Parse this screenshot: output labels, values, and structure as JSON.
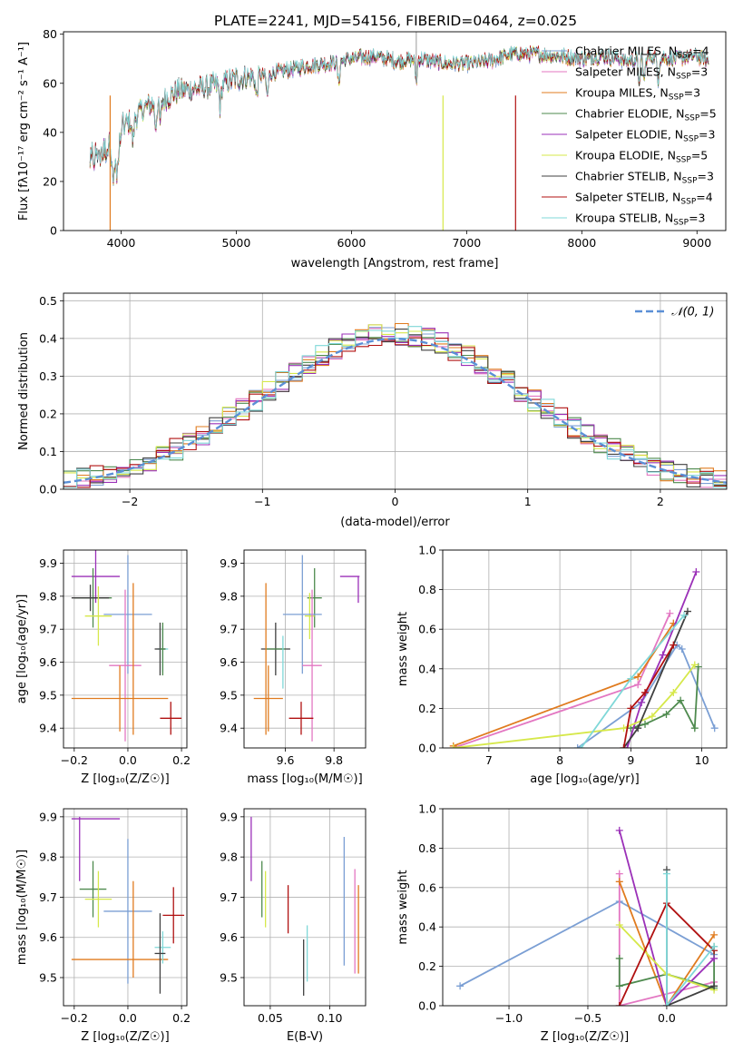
{
  "title": "PLATE=2241, MJD=54156, FIBERID=0464, z=0.025",
  "colors": {
    "c_miles": "#7b9fd4",
    "s_miles": "#e377c2",
    "k_miles": "#e07b1f",
    "c_elodie": "#4e8a4e",
    "s_elodie": "#9b30b8",
    "k_elodie": "#d6e84a",
    "c_stelib": "#404040",
    "s_stelib": "#b01010",
    "k_stelib": "#7fd8d8",
    "normal": "#5b8fd6"
  },
  "chart_data": [
    {
      "id": "spectrum",
      "type": "line",
      "xlabel": "wavelength [Angstrom, rest frame]",
      "ylabel": "Flux [fλ10⁻¹⁷ erg cm⁻² s⁻¹ A⁻¹]",
      "xlim": [
        3500,
        9250
      ],
      "ylim": [
        0,
        81
      ],
      "xticks": [
        4000,
        5000,
        6000,
        7000,
        8000,
        9000
      ],
      "yticks": [
        0,
        20,
        40,
        60,
        80
      ],
      "legend": "upper-right",
      "continuum": {
        "x": [
          3730,
          3800,
          3900,
          3950,
          4000,
          4100,
          4200,
          4300,
          4400,
          4500,
          4700,
          4900,
          5000,
          5200,
          5400,
          5600,
          5800,
          6000,
          6200,
          6400,
          6600,
          6800,
          7000,
          7200,
          7400,
          7600,
          7800,
          8000,
          8200,
          8400,
          8600,
          8800,
          9000,
          9100
        ],
        "y": [
          32,
          34,
          38,
          30,
          42,
          45,
          50,
          52,
          54,
          57,
          58,
          60,
          62,
          63,
          65,
          67,
          68,
          70,
          71,
          69,
          70,
          68,
          68,
          69,
          72,
          72,
          71,
          70,
          71,
          69,
          71,
          70,
          71,
          69
        ]
      },
      "series": [
        {
          "name": "Chabrier MILES, N_SSP=4",
          "color": "c_miles"
        },
        {
          "name": "Salpeter MILES, N_SSP=3",
          "color": "s_miles"
        },
        {
          "name": "Kroupa MILES, N_SSP=3",
          "color": "k_miles"
        },
        {
          "name": "Chabrier ELODIE, N_SSP=5",
          "color": "c_elodie"
        },
        {
          "name": "Salpeter ELODIE, N_SSP=3",
          "color": "s_elodie"
        },
        {
          "name": "Kroupa ELODIE, N_SSP=5",
          "color": "k_elodie"
        },
        {
          "name": "Chabrier STELIB, N_SSP=3",
          "color": "c_stelib"
        },
        {
          "name": "Salpeter STELIB, N_SSP=4",
          "color": "s_stelib"
        },
        {
          "name": "Kroupa STELIB, N_SSP=3",
          "color": "k_stelib"
        }
      ],
      "legend_labels": [
        {
          "pre": "Chabrier MILES, N",
          "sub": "SSP",
          "post": "=4"
        },
        {
          "pre": "Salpeter MILES, N",
          "sub": "SSP",
          "post": "=3"
        },
        {
          "pre": "Kroupa MILES, N",
          "sub": "SSP",
          "post": "=3"
        },
        {
          "pre": "Chabrier ELODIE, N",
          "sub": "SSP",
          "post": "=5"
        },
        {
          "pre": "Salpeter ELODIE, N",
          "sub": "SSP",
          "post": "=3"
        },
        {
          "pre": "Kroupa ELODIE, N",
          "sub": "SSP",
          "post": "=5"
        },
        {
          "pre": "Chabrier STELIB, N",
          "sub": "SSP",
          "post": "=3"
        },
        {
          "pre": "Salpeter STELIB, N",
          "sub": "SSP",
          "post": "=4"
        },
        {
          "pre": "Kroupa STELIB, N",
          "sub": "SSP",
          "post": "=3"
        }
      ]
    },
    {
      "id": "residuals",
      "type": "histogram",
      "xlabel": "(data-model)/error",
      "ylabel": "Normed distribution",
      "xlim": [
        -2.5,
        2.5
      ],
      "ylim": [
        0,
        0.52
      ],
      "xticks": [
        -2,
        -1,
        0,
        1,
        2
      ],
      "yticks": [
        0.0,
        0.1,
        0.2,
        0.3,
        0.4,
        0.5
      ],
      "grid": true,
      "legend": "upper-right",
      "normal_label": "𝒩(0, 1)",
      "bin_width": 0.1,
      "bin_start": -2.5
    },
    {
      "id": "age_vs_Z",
      "type": "errorbar",
      "xlabel": "Z [log₁₀(Z/Z☉)]",
      "ylabel": "age  [log₁₀(age/yr)]",
      "xlim": [
        -0.24,
        0.22
      ],
      "ylim": [
        9.34,
        9.94
      ],
      "xticks": [
        -0.2,
        0.0,
        0.2
      ],
      "yticks": [
        9.4,
        9.5,
        9.6,
        9.7,
        9.8,
        9.9
      ],
      "grid": true,
      "points": [
        {
          "color": "s_elodie",
          "x": -0.12,
          "xerr": 0.09,
          "y": 9.86,
          "yerr": 0.08
        },
        {
          "color": "c_elodie",
          "x": -0.13,
          "xerr": 0.07,
          "y": 9.795,
          "yerr": 0.09
        },
        {
          "color": "c_stelib",
          "x": -0.14,
          "xerr": 0.07,
          "y": 9.795,
          "yerr": 0.04
        },
        {
          "color": "k_elodie",
          "x": -0.11,
          "xerr": 0.05,
          "y": 9.74,
          "yerr": 0.09
        },
        {
          "color": "c_miles",
          "x": -0.0,
          "xerr": 0.09,
          "y": 9.745,
          "yerr": 0.18
        },
        {
          "color": "s_miles",
          "x": -0.01,
          "xerr": 0.06,
          "y": 9.59,
          "yerr": 0.23
        },
        {
          "color": "k_miles",
          "x": -0.03,
          "xerr": 0.18,
          "y": 9.49,
          "yerr": 0.1
        },
        {
          "color": "k_miles",
          "x": 0.02,
          "xerr": 0.0,
          "y": 9.61,
          "yerr": 0.23
        },
        {
          "color": "k_stelib",
          "x": 0.13,
          "xerr": 0.02,
          "y": 9.64,
          "yerr": 0.07
        },
        {
          "color": "c_stelib",
          "x": 0.12,
          "xerr": 0.02,
          "y": 9.64,
          "yerr": 0.08
        },
        {
          "color": "c_elodie",
          "x": 0.13,
          "xerr": 0.01,
          "y": 9.64,
          "yerr": 0.08
        },
        {
          "color": "s_stelib",
          "x": 0.16,
          "xerr": 0.04,
          "y": 9.43,
          "yerr": 0.05
        }
      ]
    },
    {
      "id": "age_vs_mass",
      "type": "errorbar",
      "xlabel": "mass [log₁₀(M/M☉)]",
      "ylabel": "",
      "xlim": [
        9.43,
        9.93
      ],
      "ylim": [
        9.34,
        9.94
      ],
      "xticks": [
        9.6,
        9.8
      ],
      "yticks": [
        9.4,
        9.5,
        9.6,
        9.7,
        9.8,
        9.9
      ],
      "grid": true,
      "points": [
        {
          "color": "s_elodie",
          "x": 9.865,
          "xerr": 0.04,
          "y": 9.86,
          "yerr": 0.0
        },
        {
          "color": "s_elodie",
          "x": 9.9,
          "xerr": 0.0,
          "y": 9.82,
          "yerr": 0.04
        },
        {
          "color": "c_elodie",
          "x": 9.72,
          "xerr": 0.03,
          "y": 9.795,
          "yerr": 0.09
        },
        {
          "color": "k_elodie",
          "x": 9.7,
          "xerr": 0.02,
          "y": 9.74,
          "yerr": 0.07
        },
        {
          "color": "c_miles",
          "x": 9.67,
          "xerr": 0.08,
          "y": 9.745,
          "yerr": 0.18
        },
        {
          "color": "c_stelib",
          "x": 9.56,
          "xerr": 0.06,
          "y": 9.64,
          "yerr": 0.08
        },
        {
          "color": "c_elodie",
          "x": 9.56,
          "xerr": 0.04,
          "y": 9.64,
          "yerr": 0.0
        },
        {
          "color": "s_miles",
          "x": 9.71,
          "xerr": 0.04,
          "y": 9.59,
          "yerr": 0.23
        },
        {
          "color": "k_miles",
          "x": 9.53,
          "xerr": 0.06,
          "y": 9.49,
          "yerr": 0.1
        },
        {
          "color": "k_miles",
          "x": 9.52,
          "xerr": 0.0,
          "y": 9.61,
          "yerr": 0.23
        },
        {
          "color": "k_stelib",
          "x": 9.59,
          "xerr": 0.0,
          "y": 9.6,
          "yerr": 0.08
        },
        {
          "color": "s_stelib",
          "x": 9.665,
          "xerr": 0.05,
          "y": 9.43,
          "yerr": 0.05
        }
      ]
    },
    {
      "id": "weight_vs_age",
      "type": "line",
      "xlabel": "age  [log₁₀(age/yr)]",
      "ylabel": "mass weight",
      "xlim": [
        6.35,
        10.35
      ],
      "ylim": [
        0,
        1.0
      ],
      "xticks": [
        7,
        8,
        9,
        10
      ],
      "yticks": [
        0.0,
        0.2,
        0.4,
        0.6,
        0.8,
        1.0
      ],
      "grid": true,
      "series": [
        {
          "color": "c_miles",
          "x": [
            8.25,
            9.15,
            9.65,
            9.72,
            10.18
          ],
          "y": [
            0.0,
            0.23,
            0.52,
            0.5,
            0.1
          ]
        },
        {
          "color": "s_miles",
          "x": [
            6.5,
            9.1,
            9.55
          ],
          "y": [
            0.0,
            0.32,
            0.68
          ]
        },
        {
          "color": "k_miles",
          "x": [
            6.5,
            9.1,
            9.6
          ],
          "y": [
            0.01,
            0.36,
            0.63
          ]
        },
        {
          "color": "c_elodie",
          "x": [
            9.0,
            9.2,
            9.5,
            9.7,
            9.9,
            9.95
          ],
          "y": [
            0.1,
            0.12,
            0.17,
            0.24,
            0.1,
            0.41
          ]
        },
        {
          "color": "s_elodie",
          "x": [
            8.95,
            9.15,
            9.45,
            9.92
          ],
          "y": [
            0.0,
            0.23,
            0.47,
            0.89
          ]
        },
        {
          "color": "k_elodie",
          "x": [
            6.5,
            8.9,
            9.3,
            9.6,
            9.9
          ],
          "y": [
            0.0,
            0.1,
            0.16,
            0.28,
            0.42
          ]
        },
        {
          "color": "c_stelib",
          "x": [
            8.9,
            9.1,
            9.8
          ],
          "y": [
            0.0,
            0.1,
            0.69
          ]
        },
        {
          "color": "s_stelib",
          "x": [
            8.9,
            9.0,
            9.2,
            9.6
          ],
          "y": [
            0.0,
            0.2,
            0.28,
            0.52
          ]
        },
        {
          "color": "k_stelib",
          "x": [
            8.3,
            9.0,
            9.75
          ],
          "y": [
            0.0,
            0.35,
            0.67
          ]
        }
      ]
    },
    {
      "id": "mass_vs_Z",
      "type": "errorbar",
      "xlabel": "Z [log₁₀(Z/Z☉)]",
      "ylabel": "mass [log₁₀(M/M☉)]",
      "xlim": [
        -0.24,
        0.22
      ],
      "ylim": [
        9.43,
        9.92
      ],
      "xticks": [
        -0.2,
        0.0,
        0.2
      ],
      "yticks": [
        9.5,
        9.6,
        9.7,
        9.8,
        9.9
      ],
      "grid": true,
      "points": [
        {
          "color": "s_elodie",
          "x": -0.12,
          "xerr": 0.09,
          "y": 9.895,
          "yerr": 0.0
        },
        {
          "color": "s_elodie",
          "x": -0.18,
          "xerr": 0.0,
          "y": 9.82,
          "yerr": 0.08
        },
        {
          "color": "c_elodie",
          "x": -0.13,
          "xerr": 0.05,
          "y": 9.72,
          "yerr": 0.07
        },
        {
          "color": "k_elodie",
          "x": -0.11,
          "xerr": 0.05,
          "y": 9.695,
          "yerr": 0.07
        },
        {
          "color": "c_miles",
          "x": -0.0,
          "xerr": 0.09,
          "y": 9.665,
          "yerr": 0.18
        },
        {
          "color": "k_miles",
          "x": -0.03,
          "xerr": 0.18,
          "y": 9.545,
          "yerr": 0.0
        },
        {
          "color": "k_miles",
          "x": 0.02,
          "xerr": 0.0,
          "y": 9.62,
          "yerr": 0.12
        },
        {
          "color": "s_stelib",
          "x": 0.17,
          "xerr": 0.04,
          "y": 9.655,
          "yerr": 0.07
        },
        {
          "color": "k_stelib",
          "x": 0.13,
          "xerr": 0.03,
          "y": 9.575,
          "yerr": 0.04
        },
        {
          "color": "c_stelib",
          "x": 0.12,
          "xerr": 0.02,
          "y": 9.56,
          "yerr": 0.1
        }
      ]
    },
    {
      "id": "mass_vs_ebv",
      "type": "errorbar",
      "xlabel": "E(B-V)",
      "ylabel": "",
      "xlim": [
        0.028,
        0.13
      ],
      "ylim": [
        9.43,
        9.92
      ],
      "xticks": [
        0.05,
        0.1
      ],
      "yticks": [
        9.5,
        9.6,
        9.7,
        9.8,
        9.9
      ],
      "grid": true,
      "points": [
        {
          "color": "s_elodie",
          "x": 0.034,
          "y": 9.82,
          "yerr": 0.08
        },
        {
          "color": "c_elodie",
          "x": 0.043,
          "y": 9.72,
          "yerr": 0.07
        },
        {
          "color": "k_elodie",
          "x": 0.046,
          "y": 9.695,
          "yerr": 0.07
        },
        {
          "color": "s_stelib",
          "x": 0.065,
          "y": 9.67,
          "yerr": 0.06
        },
        {
          "color": "c_stelib",
          "x": 0.078,
          "y": 9.525,
          "yerr": 0.07
        },
        {
          "color": "k_stelib",
          "x": 0.081,
          "y": 9.56,
          "yerr": 0.07
        },
        {
          "color": "c_miles",
          "x": 0.112,
          "y": 9.69,
          "yerr": 0.16
        },
        {
          "color": "s_miles",
          "x": 0.121,
          "y": 9.64,
          "yerr": 0.13
        },
        {
          "color": "k_miles",
          "x": 0.124,
          "y": 9.62,
          "yerr": 0.11
        }
      ]
    },
    {
      "id": "weight_vs_Z",
      "type": "line",
      "xlabel": "Z [log₁₀(Z/Z☉)]",
      "ylabel": "mass weight",
      "xlim": [
        -1.42,
        0.38
      ],
      "ylim": [
        0,
        1.0
      ],
      "xticks": [
        -1.0,
        -0.5,
        0.0
      ],
      "yticks": [
        0.0,
        0.2,
        0.4,
        0.6,
        0.8,
        1.0
      ],
      "grid": true,
      "series": [
        {
          "color": "c_miles",
          "x": [
            -1.31,
            -0.3,
            0.3
          ],
          "y": [
            0.1,
            0.53,
            0.26
          ]
        },
        {
          "color": "s_miles",
          "x": [
            -0.3,
            -0.3,
            0.3
          ],
          "y": [
            0.67,
            0.0,
            0.12
          ]
        },
        {
          "color": "k_miles",
          "x": [
            -0.3,
            0.0,
            0.3
          ],
          "y": [
            0.63,
            0.0,
            0.36
          ]
        },
        {
          "color": "c_elodie",
          "x": [
            -0.3,
            -0.3,
            0.0,
            0.3,
            0.3
          ],
          "y": [
            0.24,
            0.1,
            0.16,
            0.09,
            0.3
          ]
        },
        {
          "color": "s_elodie",
          "x": [
            -0.3,
            0.0,
            0.3
          ],
          "y": [
            0.89,
            0.0,
            0.24
          ]
        },
        {
          "color": "k_elodie",
          "x": [
            -0.3,
            0.0,
            0.3
          ],
          "y": [
            0.41,
            0.16,
            0.08
          ]
        },
        {
          "color": "c_stelib",
          "x": [
            0.0,
            0.0,
            0.3
          ],
          "y": [
            0.69,
            0.0,
            0.1
          ]
        },
        {
          "color": "s_stelib",
          "x": [
            -0.3,
            0.0,
            0.3
          ],
          "y": [
            0.0,
            0.52,
            0.28
          ]
        },
        {
          "color": "k_stelib",
          "x": [
            0.0,
            0.0,
            0.3
          ],
          "y": [
            0.67,
            0.0,
            0.3
          ]
        }
      ]
    }
  ]
}
